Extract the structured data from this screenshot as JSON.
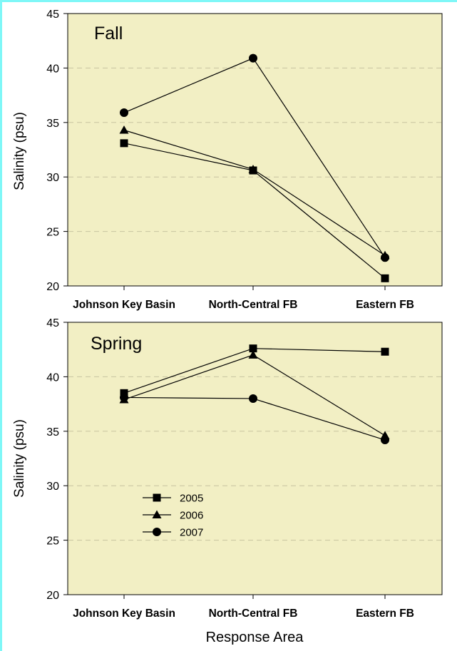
{
  "colors": {
    "plot_background": "#f2efc4",
    "gridline": "#c8c4a0",
    "series": "#000000",
    "frame_accent": "#7ff7f7"
  },
  "chart_data": [
    {
      "type": "line",
      "panel_label": "Fall",
      "categories": [
        "Johnson Key Basin",
        "North-Central FB",
        "Eastern FB"
      ],
      "ylabel": "Salinity (psu)",
      "xlabel": "",
      "ylim": [
        20,
        45
      ],
      "yticks": [
        20,
        25,
        30,
        35,
        40,
        45
      ],
      "grid": "horizontal dashed",
      "legend": "none",
      "series": [
        {
          "name": "2005",
          "marker": "square",
          "values": [
            33.1,
            30.6,
            20.7
          ]
        },
        {
          "name": "2006",
          "marker": "triangle",
          "values": [
            34.3,
            30.7,
            22.8
          ]
        },
        {
          "name": "2007",
          "marker": "circle",
          "values": [
            35.9,
            40.9,
            22.6
          ]
        }
      ]
    },
    {
      "type": "line",
      "panel_label": "Spring",
      "categories": [
        "Johnson Key Basin",
        "North-Central FB",
        "Eastern FB"
      ],
      "ylabel": "Salinity (psu)",
      "xlabel": "Response Area",
      "ylim": [
        20,
        45
      ],
      "yticks": [
        20,
        25,
        30,
        35,
        40,
        45
      ],
      "grid": "horizontal dashed",
      "legend": "lower-left",
      "series": [
        {
          "name": "2005",
          "marker": "square",
          "values": [
            38.5,
            42.6,
            42.3
          ]
        },
        {
          "name": "2006",
          "marker": "triangle",
          "values": [
            37.9,
            42.0,
            34.6
          ]
        },
        {
          "name": "2007",
          "marker": "circle",
          "values": [
            38.1,
            38.0,
            34.2
          ]
        }
      ]
    }
  ]
}
